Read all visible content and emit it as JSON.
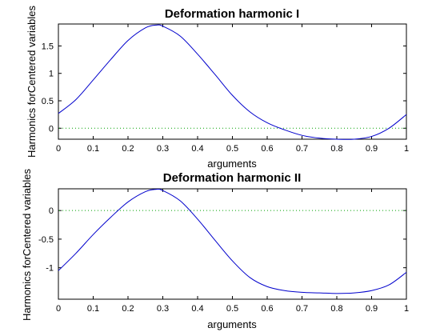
{
  "chart_data": [
    {
      "type": "line",
      "title": "Deformation harmonic I",
      "xlabel": "arguments",
      "ylabel": "Harmonics forCentered variables",
      "xlim": [
        0,
        1
      ],
      "ylim": [
        -0.2,
        1.9
      ],
      "xticks": [
        0,
        0.1,
        0.2,
        0.3,
        0.4,
        0.5,
        0.6,
        0.7,
        0.8,
        0.9,
        1
      ],
      "xtick_labels": [
        "0",
        "0.1",
        "0.2",
        "0.3",
        "0.4",
        "0.5",
        "0.6",
        "0.7",
        "0.8",
        "0.9",
        "1"
      ],
      "yticks": [
        0,
        0.5,
        1,
        1.5
      ],
      "ytick_labels": [
        "0",
        "0.5",
        "1",
        "1.5"
      ],
      "grid": false,
      "reference_line": {
        "y": 0,
        "style": "dotted",
        "color": "#00a000"
      },
      "series": [
        {
          "color": "#0000cc",
          "x": [
            0,
            0.05,
            0.1,
            0.15,
            0.2,
            0.25,
            0.28,
            0.3,
            0.35,
            0.4,
            0.45,
            0.5,
            0.55,
            0.6,
            0.65,
            0.7,
            0.75,
            0.8,
            0.85,
            0.9,
            0.95,
            1
          ],
          "y": [
            0.27,
            0.52,
            0.88,
            1.25,
            1.6,
            1.83,
            1.88,
            1.86,
            1.68,
            1.35,
            0.98,
            0.6,
            0.3,
            0.1,
            -0.03,
            -0.13,
            -0.18,
            -0.2,
            -0.2,
            -0.15,
            0.0,
            0.25
          ]
        }
      ]
    },
    {
      "type": "line",
      "title": "Deformation harmonic II",
      "xlabel": "arguments",
      "ylabel": "Harmonics forCentered variables",
      "xlim": [
        0,
        1
      ],
      "ylim": [
        -1.55,
        0.38
      ],
      "xticks": [
        0,
        0.1,
        0.2,
        0.3,
        0.4,
        0.5,
        0.6,
        0.7,
        0.8,
        0.9,
        1
      ],
      "xtick_labels": [
        "0",
        "0.1",
        "0.2",
        "0.3",
        "0.4",
        "0.5",
        "0.6",
        "0.7",
        "0.8",
        "0.9",
        "1"
      ],
      "yticks": [
        -1,
        -0.5,
        0
      ],
      "ytick_labels": [
        "-1",
        "-0.5",
        "0"
      ],
      "grid": false,
      "reference_line": {
        "y": 0,
        "style": "dotted",
        "color": "#00a000"
      },
      "series": [
        {
          "color": "#0000cc",
          "x": [
            0,
            0.05,
            0.1,
            0.15,
            0.2,
            0.25,
            0.28,
            0.3,
            0.35,
            0.4,
            0.45,
            0.5,
            0.55,
            0.6,
            0.65,
            0.7,
            0.75,
            0.8,
            0.85,
            0.9,
            0.95,
            1
          ],
          "y": [
            -1.05,
            -0.75,
            -0.42,
            -0.12,
            0.15,
            0.33,
            0.37,
            0.35,
            0.17,
            -0.15,
            -0.52,
            -0.88,
            -1.17,
            -1.33,
            -1.4,
            -1.43,
            -1.44,
            -1.45,
            -1.44,
            -1.4,
            -1.3,
            -1.08
          ]
        }
      ]
    }
  ]
}
